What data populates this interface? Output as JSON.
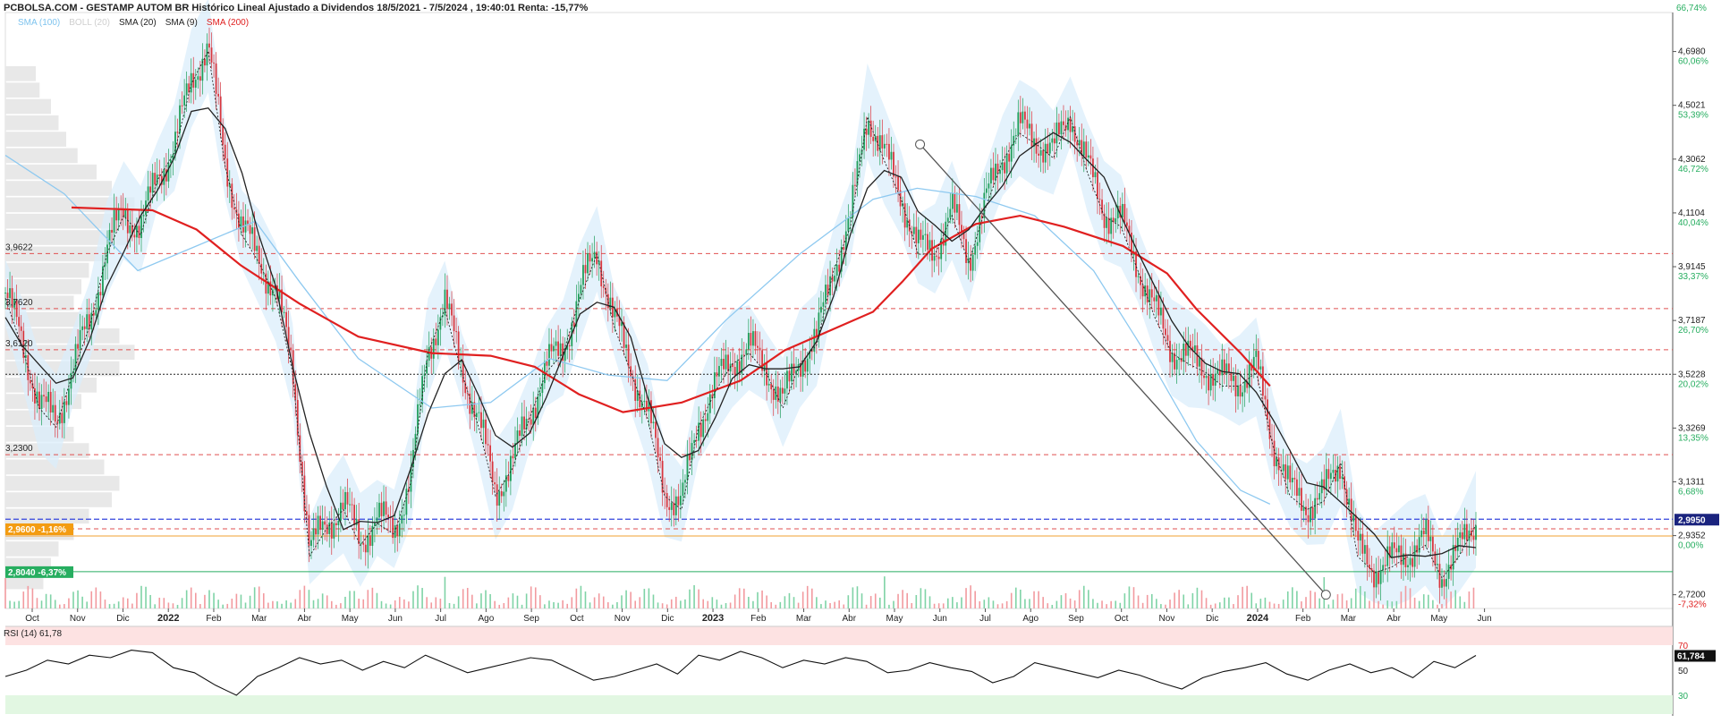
{
  "title": "PCBOLSA.COM - GESTAMP AUTOM BR Histórico Lineal Ajustado a Dividendos 18/5/2021 - 7/5/2024 , 19:40:01 Renta: -15,77%",
  "legend": [
    {
      "label": "SMA (100)",
      "color": "#7ec3ee"
    },
    {
      "label": "BOLL (20)",
      "color": "#cfcfcf"
    },
    {
      "label": "SMA (20)",
      "color": "#222222"
    },
    {
      "label": "SMA (9)",
      "color": "#222222"
    },
    {
      "label": "SMA (200)",
      "color": "#e02020"
    }
  ],
  "rsi_label": "RSI (14)",
  "rsi_value_text": "61,78",
  "chart_data": [
    {
      "type": "candlestick",
      "title": "PCBOLSA.COM - GESTAMP AUTOM BR Histórico Lineal Ajustado a Dividendos 18/5/2021 - 7/5/2024 , 19:40:01 Renta: -15,77%",
      "x_ticks": [
        "Oct",
        "Nov",
        "Dic",
        "2022",
        "Feb",
        "Mar",
        "Abr",
        "May",
        "Jun",
        "Jul",
        "Ago",
        "Sep",
        "Oct",
        "Nov",
        "Dic",
        "2023",
        "Feb",
        "Mar",
        "Abr",
        "May",
        "Jun",
        "Jul",
        "Ago",
        "Sep",
        "Oct",
        "Nov",
        "Dic",
        "2024",
        "Feb",
        "Mar",
        "Abr",
        "May",
        "Jun"
      ],
      "bold_ticks": [
        "2022",
        "2023",
        "2024"
      ],
      "ylim": [
        2.67,
        4.84
      ],
      "right_ticks": [
        {
          "price": 4.698,
          "label": "4,6980",
          "pct": "60,06%"
        },
        {
          "price": 4.5021,
          "label": "4,5021",
          "pct": "53,39%"
        },
        {
          "price": 4.3062,
          "label": "4,3062",
          "pct": "46,72%"
        },
        {
          "price": 4.1104,
          "label": "4,1104",
          "pct": "40,04%"
        },
        {
          "price": 3.9145,
          "label": "3,9145",
          "pct": "33,37%"
        },
        {
          "price": 3.7187,
          "label": "3,7187",
          "pct": "26,70%"
        },
        {
          "price": 3.5228,
          "label": "3,5228",
          "pct": "20,02%"
        },
        {
          "price": 3.3269,
          "label": "3,3269",
          "pct": "13,35%"
        },
        {
          "price": 3.1311,
          "label": "3,1311",
          "pct": "6,68%"
        },
        {
          "price": 2.9352,
          "label": "2,9352",
          "pct": "0,00%"
        },
        {
          "price": 2.72,
          "label": "2,7200",
          "pct": "-7,32%"
        }
      ],
      "top_pct_label": "66,74%",
      "last_price_label": "2,9950",
      "last_price": 2.995,
      "left_levels": [
        {
          "price": 3.9622,
          "label": "3,9622"
        },
        {
          "price": 3.762,
          "label": "3,7620"
        },
        {
          "price": 3.612,
          "label": "3,6120"
        },
        {
          "price": 3.23,
          "label": "3,2300"
        }
      ],
      "left_badges": [
        {
          "price": 2.96,
          "label": "2,9600  -1,16%",
          "color": "#f39c12"
        },
        {
          "price": 2.804,
          "label": "2,8040  -6,37%",
          "color": "#27ae60"
        }
      ],
      "red_levels": [
        3.9622,
        3.762,
        3.612,
        3.23,
        2.96
      ],
      "black_level": 3.5228,
      "blue_level": 2.995,
      "green_level": 2.804,
      "close_series": [
        3.82,
        3.64,
        3.42,
        3.35,
        3.55,
        3.72,
        3.98,
        4.12,
        4.05,
        4.25,
        4.35,
        4.6,
        4.72,
        4.3,
        4.05,
        3.95,
        3.82,
        3.55,
        2.88,
        2.98,
        3.05,
        2.92,
        3.0,
        2.96,
        3.15,
        3.62,
        3.78,
        3.55,
        3.35,
        3.1,
        3.2,
        3.38,
        3.55,
        3.62,
        3.82,
        3.98,
        3.72,
        3.55,
        3.38,
        3.1,
        3.05,
        3.35,
        3.48,
        3.58,
        3.62,
        3.55,
        3.42,
        3.58,
        3.65,
        3.92,
        4.08,
        4.48,
        4.32,
        4.18,
        3.98,
        3.98,
        4.12,
        3.95,
        4.15,
        4.32,
        4.42,
        4.38,
        4.33,
        4.48,
        4.28,
        4.12,
        4.08,
        3.92,
        3.75,
        3.62,
        3.58,
        3.55,
        3.5,
        3.5,
        3.55,
        3.28,
        3.1,
        3.05,
        3.08,
        3.22,
        2.88,
        2.82,
        2.84,
        2.88,
        2.92,
        2.8,
        2.88,
        2.995
      ],
      "sma200_series": [
        [
          0.045,
          4.13
        ],
        [
          0.1,
          4.12
        ],
        [
          0.13,
          4.05
        ],
        [
          0.16,
          3.92
        ],
        [
          0.2,
          3.78
        ],
        [
          0.24,
          3.66
        ],
        [
          0.29,
          3.6
        ],
        [
          0.33,
          3.59
        ],
        [
          0.36,
          3.55
        ],
        [
          0.39,
          3.45
        ],
        [
          0.42,
          3.385
        ],
        [
          0.46,
          3.42
        ],
        [
          0.5,
          3.5
        ],
        [
          0.53,
          3.61
        ],
        [
          0.56,
          3.68
        ],
        [
          0.59,
          3.75
        ],
        [
          0.61,
          3.86
        ],
        [
          0.63,
          3.98
        ],
        [
          0.66,
          4.07
        ],
        [
          0.69,
          4.1
        ],
        [
          0.72,
          4.06
        ],
        [
          0.76,
          3.99
        ],
        [
          0.79,
          3.89
        ],
        [
          0.81,
          3.76
        ],
        [
          0.84,
          3.6
        ],
        [
          0.86,
          3.48
        ]
      ],
      "sma100_series": [
        [
          0.0,
          4.32
        ],
        [
          0.04,
          4.18
        ],
        [
          0.09,
          3.9
        ],
        [
          0.13,
          3.99
        ],
        [
          0.17,
          4.08
        ],
        [
          0.2,
          3.86
        ],
        [
          0.24,
          3.58
        ],
        [
          0.29,
          3.4
        ],
        [
          0.33,
          3.42
        ],
        [
          0.37,
          3.58
        ],
        [
          0.41,
          3.52
        ],
        [
          0.45,
          3.5
        ],
        [
          0.49,
          3.72
        ],
        [
          0.54,
          3.96
        ],
        [
          0.59,
          4.16
        ],
        [
          0.62,
          4.2
        ],
        [
          0.66,
          4.17
        ],
        [
          0.7,
          4.1
        ],
        [
          0.74,
          3.9
        ],
        [
          0.78,
          3.56
        ],
        [
          0.81,
          3.28
        ],
        [
          0.84,
          3.1
        ],
        [
          0.86,
          3.05
        ]
      ],
      "trendline": [
        [
          0.622,
          4.36
        ],
        [
          0.898,
          2.72
        ]
      ],
      "rsi": {
        "ylim": [
          15,
          85
        ],
        "levels": [
          70,
          50,
          30
        ],
        "last": 61.784,
        "last_label": "61,784",
        "series": [
          45,
          50,
          58,
          55,
          62,
          60,
          66,
          64,
          52,
          48,
          38,
          30,
          45,
          52,
          60,
          55,
          58,
          50,
          57,
          52,
          62,
          55,
          48,
          52,
          56,
          60,
          58,
          50,
          42,
          45,
          50,
          55,
          47,
          62,
          58,
          65,
          60,
          52,
          58,
          55,
          60,
          57,
          48,
          50,
          56,
          52,
          49,
          40,
          45,
          56,
          52,
          48,
          44,
          50,
          46,
          40,
          35,
          44,
          49,
          52,
          56,
          47,
          42,
          50,
          55,
          48,
          52,
          44,
          57,
          52,
          61.78
        ]
      }
    }
  ]
}
